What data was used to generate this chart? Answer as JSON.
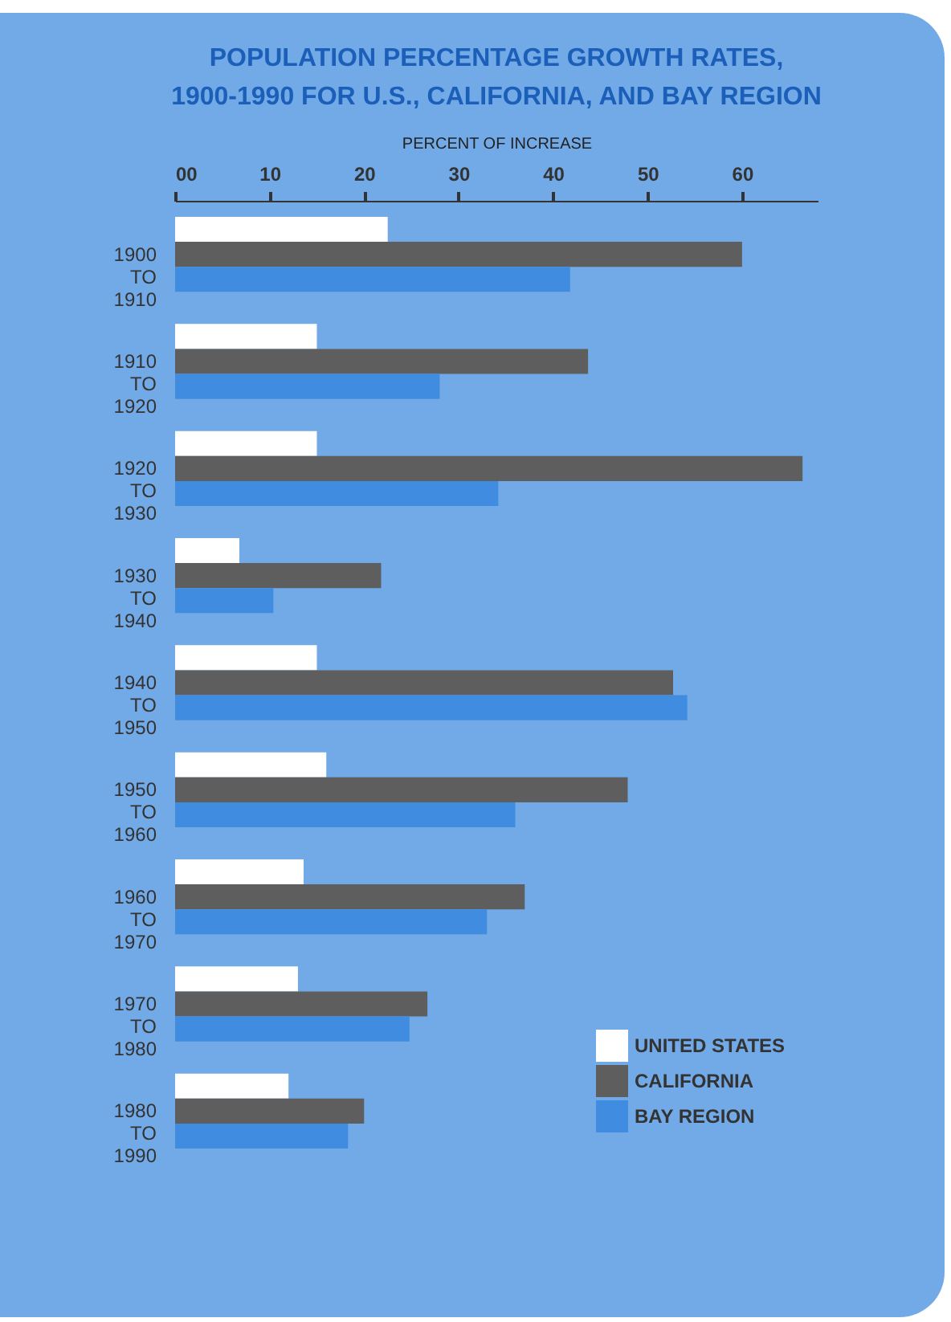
{
  "chart_data": {
    "type": "bar",
    "orientation": "horizontal",
    "title": "POPULATION PERCENTAGE GROWTH RATES,\n1900-1990 FOR U.S., CALIFORNIA, AND BAY REGION",
    "xlabel": "PERCENT OF INCREASE",
    "categories": [
      "1900 TO 1910",
      "1910 TO 1920",
      "1920 TO 1930",
      "1930 TO 1940",
      "1940 TO 1950",
      "1950 TO 1960",
      "1960 TO 1970",
      "1970 TO 1980",
      "1980 TO 1990"
    ],
    "series": [
      {
        "name": "UNITED STATES",
        "color": "#ffffff",
        "values": [
          22.5,
          15,
          15,
          6.8,
          15,
          16,
          13.6,
          13,
          12
        ]
      },
      {
        "name": "CALIFORNIA",
        "color": "#5e5e5e",
        "values": [
          60,
          43.7,
          66.4,
          21.8,
          52.7,
          47.9,
          37,
          26.7,
          20
        ]
      },
      {
        "name": "BAY REGION",
        "color": "#3f8ce0",
        "values": [
          41.8,
          28,
          34.2,
          10.4,
          54.2,
          36,
          33,
          24.8,
          18.3
        ]
      }
    ],
    "xlim": [
      0,
      68
    ],
    "xticks": [
      {
        "value": 0,
        "label": "00"
      },
      10,
      20,
      30,
      40,
      50,
      60
    ],
    "legend": "bottom right",
    "grid": false
  }
}
